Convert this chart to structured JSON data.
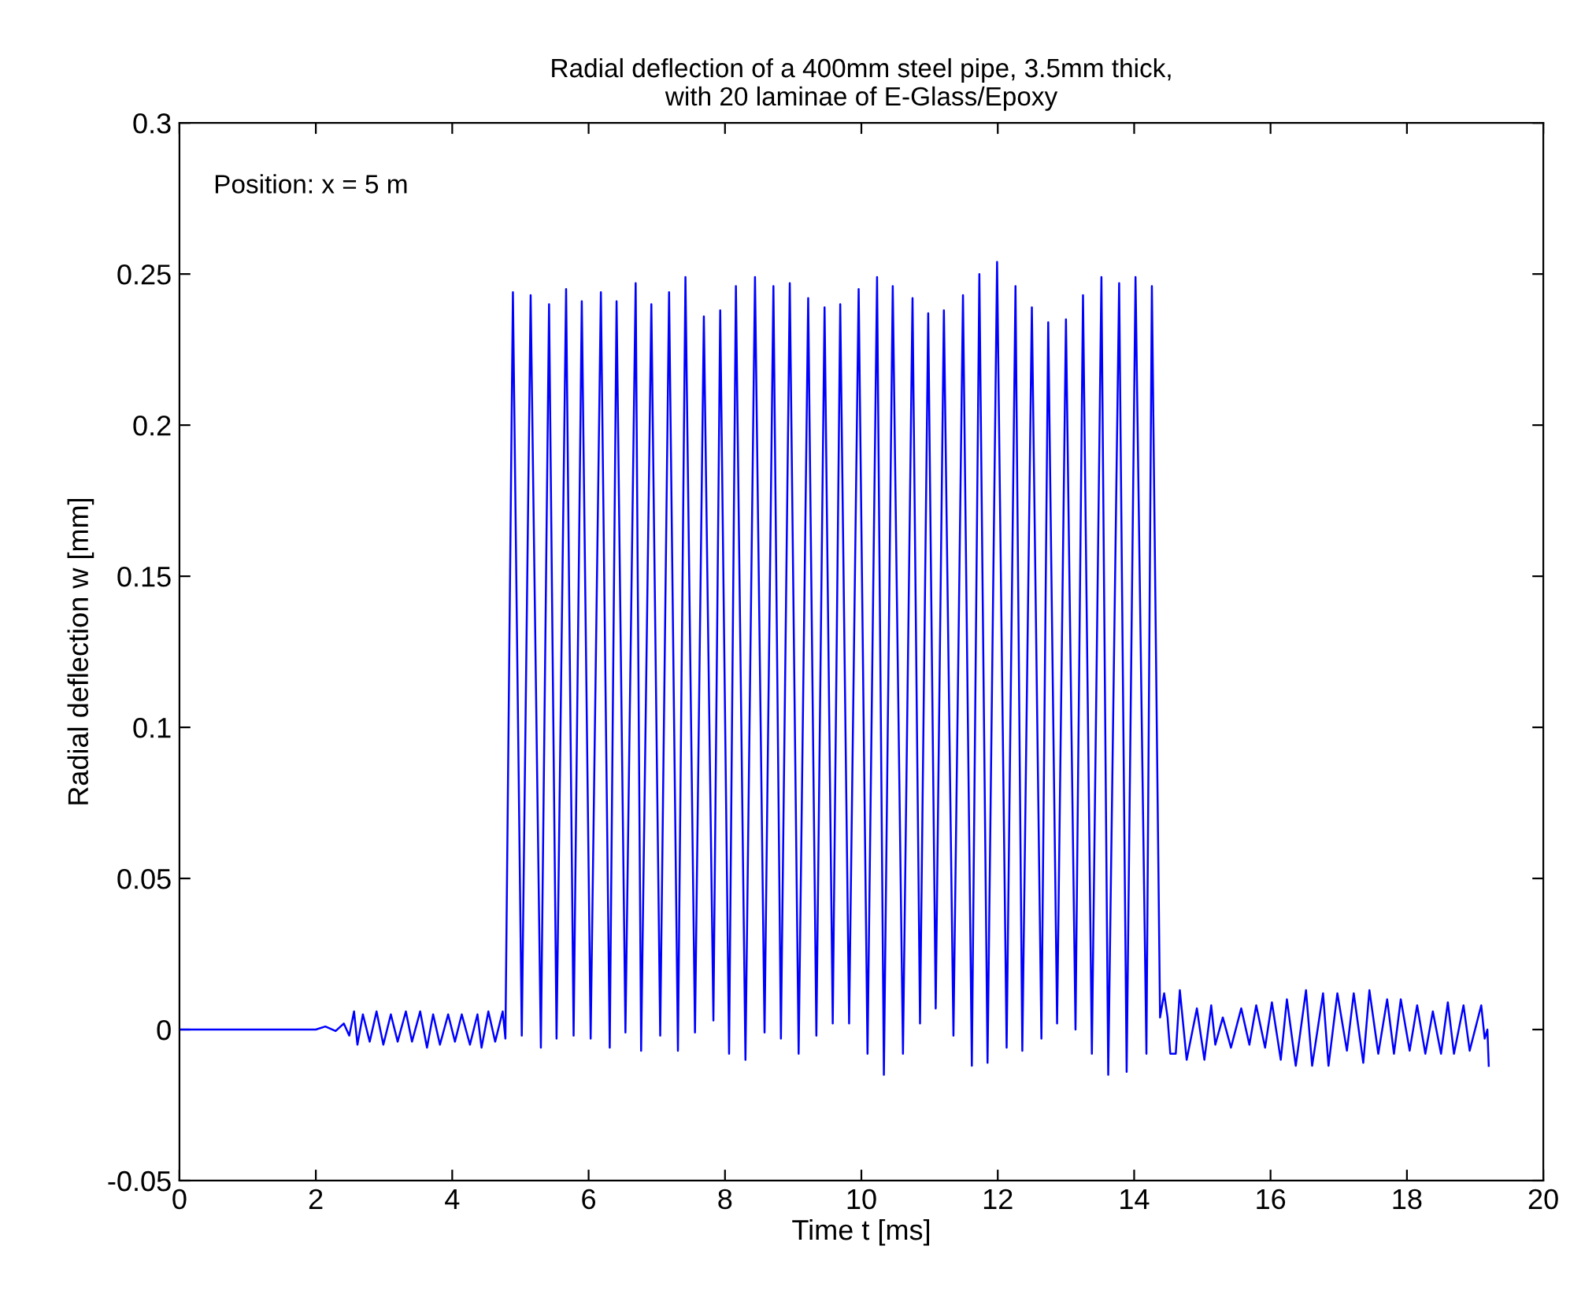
{
  "chart_data": {
    "type": "line",
    "title": "Radial deflection of a 400mm steel pipe, 3.5mm thick,\nwith 20 laminae of E-Glass/Epoxy",
    "xlabel": "Time t [ms]",
    "ylabel": "Radial deflection w [mm]",
    "annotations": [
      "Position: x = 5 m"
    ],
    "xlim": [
      0,
      20
    ],
    "ylim": [
      -0.05,
      0.3
    ],
    "xticks": [
      0,
      2,
      4,
      6,
      8,
      10,
      12,
      14,
      16,
      18,
      20
    ],
    "yticks": [
      -0.05,
      0,
      0.05,
      0.1,
      0.15,
      0.2,
      0.25,
      0.3
    ],
    "grid": false,
    "marker": "none",
    "line_style": "solid",
    "series": [
      {
        "color": "#0000ff",
        "x": [
          0,
          2.0,
          2.14,
          2.29,
          2.41,
          2.49,
          2.56,
          2.61,
          2.69,
          2.79,
          2.89,
          2.99,
          3.1,
          3.2,
          3.32,
          3.41,
          3.53,
          3.63,
          3.72,
          3.82,
          3.94,
          4.04,
          4.14,
          4.26,
          4.37,
          4.43,
          4.53,
          4.63,
          4.74,
          4.78,
          4.89,
          5.02,
          5.15,
          5.3,
          5.42,
          5.53,
          5.67,
          5.78,
          5.9,
          6.03,
          6.18,
          6.31,
          6.41,
          6.54,
          6.69,
          6.77,
          6.92,
          7.05,
          7.18,
          7.31,
          7.42,
          7.56,
          7.69,
          7.83,
          7.93,
          8.06,
          8.16,
          8.3,
          8.44,
          8.58,
          8.71,
          8.82,
          8.95,
          9.08,
          9.22,
          9.34,
          9.46,
          9.58,
          9.69,
          9.82,
          9.96,
          10.09,
          10.23,
          10.33,
          10.46,
          10.61,
          10.75,
          10.86,
          10.98,
          11.09,
          11.21,
          11.35,
          11.49,
          11.62,
          11.73,
          11.85,
          11.99,
          12.13,
          12.26,
          12.36,
          12.5,
          12.64,
          12.74,
          12.87,
          13.0,
          13.14,
          13.25,
          13.38,
          13.52,
          13.62,
          13.78,
          13.89,
          14.02,
          14.18,
          14.26,
          14.38,
          14.44,
          14.49,
          14.53,
          14.61,
          14.67,
          14.77,
          14.92,
          15.03,
          15.13,
          15.19,
          15.3,
          15.42,
          15.57,
          15.69,
          15.79,
          15.92,
          16.02,
          16.15,
          16.24,
          16.37,
          16.52,
          16.61,
          16.77,
          16.85,
          16.98,
          17.12,
          17.22,
          17.36,
          17.45,
          17.58,
          17.71,
          17.81,
          17.91,
          18.04,
          18.15,
          18.27,
          18.38,
          18.5,
          18.6,
          18.69,
          18.83,
          18.92,
          19.09,
          19.14,
          19.18,
          19.2
        ],
        "values": [
          0,
          0,
          0.001,
          -0.0005,
          0.002,
          -0.002,
          0.006,
          -0.005,
          0.005,
          -0.004,
          0.006,
          -0.005,
          0.005,
          -0.004,
          0.006,
          -0.004,
          0.006,
          -0.006,
          0.005,
          -0.005,
          0.005,
          -0.004,
          0.005,
          -0.005,
          0.005,
          -0.006,
          0.006,
          -0.004,
          0.006,
          -0.003,
          0.244,
          -0.002,
          0.243,
          -0.006,
          0.24,
          -0.003,
          0.245,
          -0.002,
          0.241,
          -0.003,
          0.244,
          -0.006,
          0.241,
          -0.001,
          0.247,
          -0.007,
          0.24,
          -0.002,
          0.244,
          -0.007,
          0.249,
          -0.001,
          0.236,
          0.003,
          0.238,
          -0.008,
          0.246,
          -0.01,
          0.249,
          -0.001,
          0.246,
          -0.003,
          0.247,
          -0.008,
          0.242,
          -0.002,
          0.239,
          0.002,
          0.24,
          0.002,
          0.245,
          -0.008,
          0.249,
          -0.015,
          0.246,
          -0.008,
          0.242,
          0.002,
          0.237,
          0.007,
          0.238,
          -0.002,
          0.243,
          -0.012,
          0.25,
          -0.011,
          0.254,
          -0.006,
          0.246,
          -0.007,
          0.239,
          -0.003,
          0.234,
          0.002,
          0.235,
          0,
          0.243,
          -0.008,
          0.249,
          -0.015,
          0.247,
          -0.014,
          0.249,
          -0.008,
          0.246,
          0.004,
          0.012,
          0.004,
          -0.008,
          -0.008,
          0.013,
          -0.01,
          0.007,
          -0.01,
          0.008,
          -0.005,
          0.004,
          -0.006,
          0.007,
          -0.005,
          0.008,
          -0.006,
          0.009,
          -0.01,
          0.01,
          -0.012,
          0.013,
          -0.012,
          0.012,
          -0.012,
          0.012,
          -0.007,
          0.012,
          -0.011,
          0.013,
          -0.008,
          0.01,
          -0.008,
          0.01,
          -0.007,
          0.008,
          -0.008,
          0.006,
          -0.008,
          0.009,
          -0.008,
          0.008,
          -0.007,
          0.008,
          -0.003,
          0,
          -0.012
        ]
      }
    ]
  }
}
